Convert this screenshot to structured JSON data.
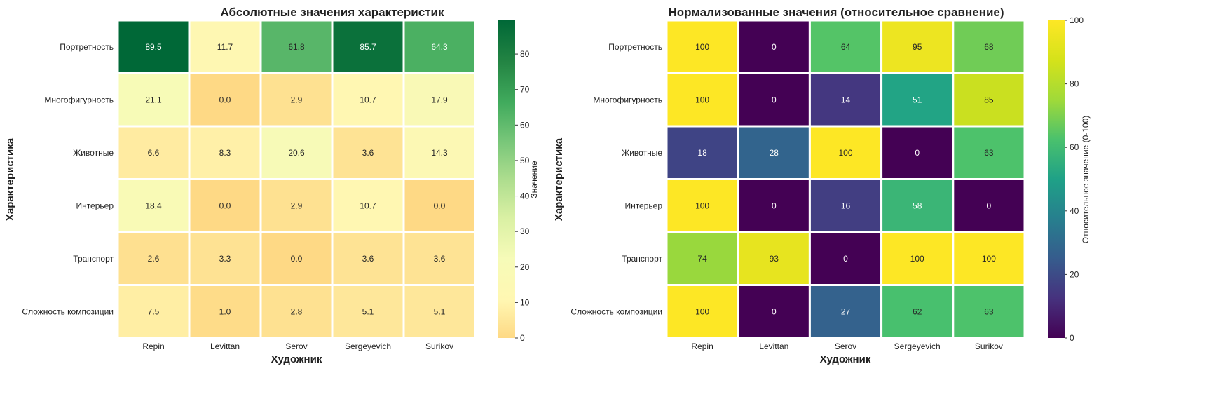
{
  "chart_data": [
    {
      "type": "heatmap",
      "title": "Абсолютные значения характеристик",
      "xlabel": "Художник",
      "ylabel": "Характеристика",
      "x": [
        "Repin",
        "Levittan",
        "Serov",
        "Sergeyevich",
        "Surikov"
      ],
      "y": [
        "Портретность",
        "Многофигурность",
        "Животные",
        "Интерьер",
        "Транспорт",
        "Сложность композиции"
      ],
      "values": [
        [
          89.5,
          11.7,
          61.8,
          85.7,
          64.3
        ],
        [
          21.1,
          0.0,
          2.9,
          10.7,
          17.9
        ],
        [
          6.6,
          8.3,
          20.6,
          3.6,
          14.3
        ],
        [
          18.4,
          0.0,
          2.9,
          10.7,
          0.0
        ],
        [
          2.6,
          3.3,
          0.0,
          3.6,
          3.6
        ],
        [
          7.5,
          1.0,
          2.8,
          5.1,
          5.1
        ]
      ],
      "cell_labels": [
        [
          "89.5",
          "11.7",
          "61.8",
          "85.7",
          "64.3"
        ],
        [
          "21.1",
          "0.0",
          "2.9",
          "10.7",
          "17.9"
        ],
        [
          "6.6",
          "8.3",
          "20.6",
          "3.6",
          "14.3"
        ],
        [
          "18.4",
          "0.0",
          "2.9",
          "10.7",
          "0.0"
        ],
        [
          "2.6",
          "3.3",
          "0.0",
          "3.6",
          "3.6"
        ],
        [
          "7.5",
          "1.0",
          "2.8",
          "5.1",
          "5.1"
        ]
      ],
      "colormap": "YlGn (light orange → yellow → green)",
      "colorbar": {
        "label": "Значение",
        "range": [
          0,
          89.5
        ],
        "ticks": [
          "0",
          "10",
          "20",
          "30",
          "40",
          "50",
          "60",
          "70",
          "80"
        ]
      }
    },
    {
      "type": "heatmap",
      "title": "Нормализованные значения (относительное сравнение)",
      "xlabel": "Художник",
      "ylabel": "Характеристика",
      "x": [
        "Repin",
        "Levittan",
        "Serov",
        "Sergeyevich",
        "Surikov"
      ],
      "y": [
        "Портретность",
        "Многофигурность",
        "Животные",
        "Интерьер",
        "Транспорт",
        "Сложность композиции"
      ],
      "values": [
        [
          100,
          0,
          64,
          95,
          68
        ],
        [
          100,
          0,
          14,
          51,
          85
        ],
        [
          18,
          28,
          100,
          0,
          63
        ],
        [
          100,
          0,
          16,
          58,
          0
        ],
        [
          74,
          93,
          0,
          100,
          100
        ],
        [
          100,
          0,
          27,
          62,
          63
        ]
      ],
      "cell_labels": [
        [
          "100",
          "0",
          "64",
          "95",
          "68"
        ],
        [
          "100",
          "0",
          "14",
          "51",
          "85"
        ],
        [
          "18",
          "28",
          "100",
          "0",
          "63"
        ],
        [
          "100",
          "0",
          "16",
          "58",
          "0"
        ],
        [
          "74",
          "93",
          "0",
          "100",
          "100"
        ],
        [
          "100",
          "0",
          "27",
          "62",
          "63"
        ]
      ],
      "colormap": "viridis",
      "colorbar": {
        "label": "Относительное значение (0-100)",
        "range": [
          0,
          100
        ],
        "ticks": [
          "0",
          "20",
          "40",
          "60",
          "80",
          "100"
        ]
      }
    }
  ]
}
